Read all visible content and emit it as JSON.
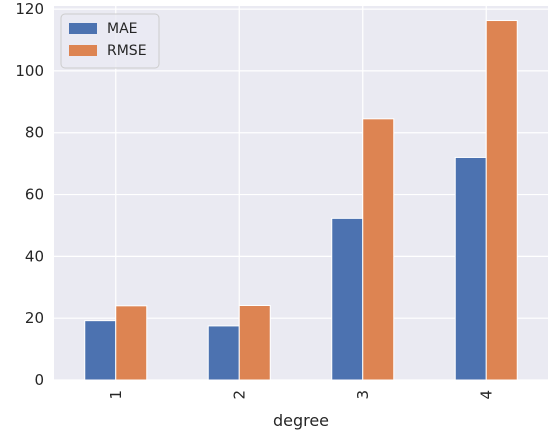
{
  "chart_data": {
    "type": "bar",
    "categories": [
      "1",
      "2",
      "3",
      "4"
    ],
    "series": [
      {
        "name": "MAE",
        "values": [
          19.2,
          17.5,
          52.3,
          72.0
        ],
        "color": "#4c72b0"
      },
      {
        "name": "RMSE",
        "values": [
          24.0,
          24.1,
          84.5,
          116.3
        ],
        "color": "#dd8452"
      }
    ],
    "xlabel": "degree",
    "ylabel": "",
    "ylim": [
      0,
      121
    ],
    "yticks": [
      0,
      20,
      40,
      60,
      80,
      100,
      120
    ],
    "grid": true,
    "legend_position": "top-left",
    "x_tick_rotation": "vertical",
    "background": "#eaeaf2"
  }
}
